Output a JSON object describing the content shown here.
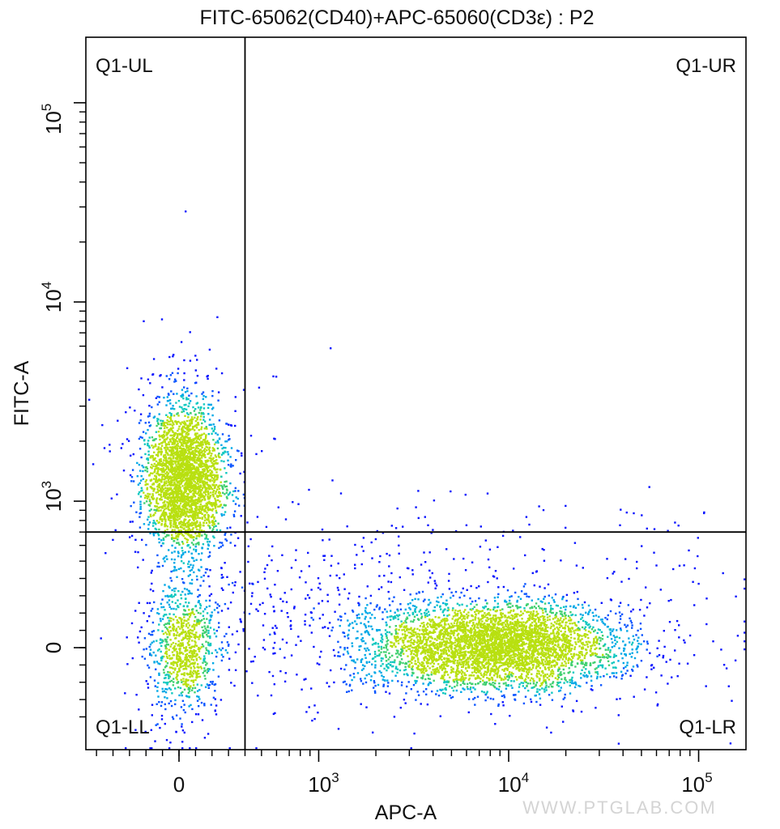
{
  "chart_data": {
    "type": "scatter",
    "title": "FITC-65062(CD40)+APC-65060(CD3ε) : P2",
    "xlabel": "APC-A",
    "ylabel": "FITC-A",
    "x_scale": "biexponential",
    "y_scale": "biexponential",
    "x_ticks": [
      {
        "value": 0,
        "base": "0",
        "exp": ""
      },
      {
        "value": 1000,
        "base": "10",
        "exp": "3"
      },
      {
        "value": 10000,
        "base": "10",
        "exp": "4"
      },
      {
        "value": 100000,
        "base": "10",
        "exp": "5"
      }
    ],
    "y_ticks": [
      {
        "value": 0,
        "base": "0",
        "exp": ""
      },
      {
        "value": 1000,
        "base": "10",
        "exp": "3"
      },
      {
        "value": 10000,
        "base": "10",
        "exp": "4"
      },
      {
        "value": 100000,
        "base": "10",
        "exp": "5"
      }
    ],
    "quadrant_gate": {
      "x": 400,
      "y": 700
    },
    "quadrant_labels": {
      "ul": "Q1-UL",
      "ur": "Q1-UR",
      "ll": "Q1-LL",
      "lr": "Q1-LR"
    },
    "populations": [
      {
        "region": "Q1-UL",
        "x_center": 30,
        "y_center": 1300,
        "approx_events": 3000
      },
      {
        "region": "Q1-LL",
        "x_center": 30,
        "y_center": 0,
        "approx_events": 900
      },
      {
        "region": "Q1-LR",
        "x_center": 8500,
        "y_center": 20,
        "approx_events": 4500
      }
    ],
    "density_colors": [
      "#0a14ff",
      "#0a55ff",
      "#00a8e6",
      "#10c8c0",
      "#40d070",
      "#b8e010"
    ],
    "grid": false,
    "watermark": "WWW.PTGLAB.COM"
  }
}
